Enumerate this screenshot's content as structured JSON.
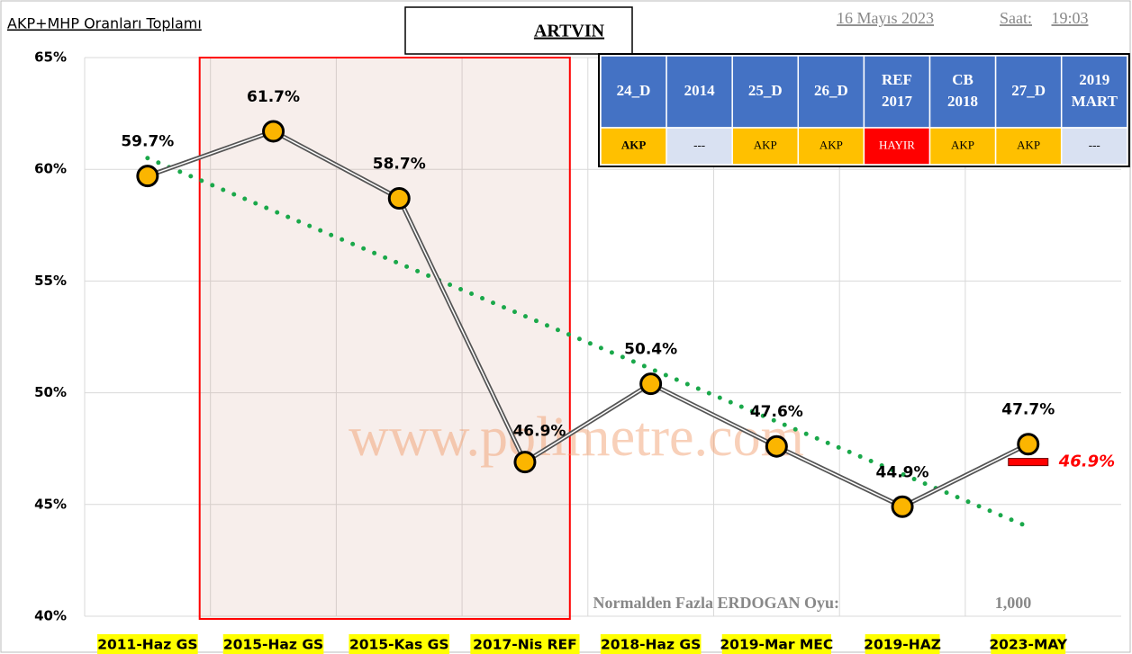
{
  "chart_data": {
    "type": "line",
    "title": "AKP+MHP Oranları Toplamı",
    "province": "ARTVIN",
    "date": "16 Mayıs 2023",
    "time_label": "Saat:",
    "time": "19:03",
    "watermark": "www.polimetre.com",
    "categories": [
      "2011-Haz GS",
      "2015-Haz GS",
      "2015-Kas GS",
      "2017-Nis REF",
      "2018-Haz GS",
      "2019-Mar MEC",
      "2019-HAZ",
      "2023-MAY"
    ],
    "values": [
      59.7,
      61.7,
      58.7,
      46.9,
      50.4,
      47.6,
      44.9,
      47.7
    ],
    "value_labels": [
      "59.7%",
      "61.7%",
      "58.7%",
      "46.9%",
      "50.4%",
      "47.6%",
      "44.9%",
      "47.7%"
    ],
    "color": "#fbb500",
    "ylim": [
      40,
      65
    ],
    "yticks": [
      {
        "value": 40,
        "label": "40%"
      },
      {
        "value": 45,
        "label": "45%"
      },
      {
        "value": 50,
        "label": "50%"
      },
      {
        "value": 55,
        "label": "55%"
      },
      {
        "value": 60,
        "label": "60%"
      },
      {
        "value": 65,
        "label": "65%"
      }
    ],
    "grid": true,
    "trendline": {
      "color": "#1aa84a",
      "start": 60.5,
      "end": 44.0
    },
    "highlight": {
      "from": 1,
      "to": 3,
      "color": "#ff0000"
    },
    "marker": {
      "value": 46.9,
      "label": "46.9%",
      "color": "#ff0000"
    },
    "footer_label": "Normalden Fazla ERDOGAN Oyu:",
    "footer_value": "1,000",
    "table": {
      "headers": [
        "24_D",
        "2014",
        "25_D",
        "26_D",
        "REF 2017",
        "CB 2018",
        "27_D",
        "2019 MART"
      ],
      "cells": [
        {
          "text": "AKP",
          "color": "#ffc000"
        },
        {
          "text": "---",
          "color": "#d9e1f2"
        },
        {
          "text": "AKP",
          "color": "#ffc000"
        },
        {
          "text": "AKP",
          "color": "#ffc000"
        },
        {
          "text": "HAYIR",
          "color": "#ff0000"
        },
        {
          "text": "AKP",
          "color": "#ffc000"
        },
        {
          "text": "AKP",
          "color": "#ffc000"
        },
        {
          "text": "---",
          "color": "#d9e1f2"
        }
      ]
    }
  }
}
